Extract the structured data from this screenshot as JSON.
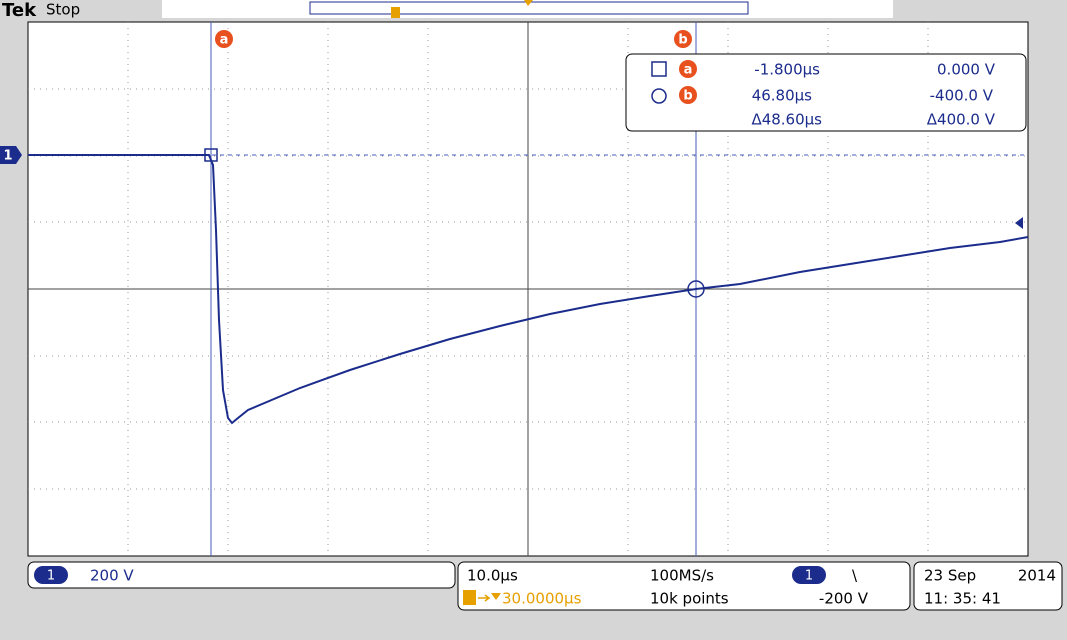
{
  "header": {
    "brand": "Tek",
    "status": "Stop"
  },
  "ground_marker": "1",
  "cursor_labels": [
    "a",
    "b"
  ],
  "readout": {
    "rows": [
      {
        "marker": "a",
        "time": "-1.800µs",
        "voltage": "0.000 V"
      },
      {
        "marker": "b",
        "time": "46.80µs",
        "voltage": "-400.0 V"
      },
      {
        "time": "Δ48.60µs",
        "voltage": "Δ400.0 V"
      }
    ]
  },
  "channel": {
    "number": "1",
    "scale": "200 V"
  },
  "timebase": {
    "scale": "10.0µs",
    "sample_rate": "100MS/s",
    "position": "30.0000µs",
    "record_length": "10k points"
  },
  "trigger": {
    "source": "1",
    "slope": "\\",
    "level": "-200 V"
  },
  "datetime": {
    "date": "23 Sep",
    "year": "2014",
    "time": "11: 35: 41"
  }
}
